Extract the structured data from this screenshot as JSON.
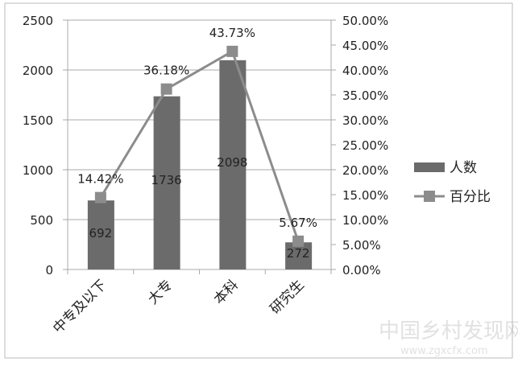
{
  "chart_data": {
    "type": "bar+line",
    "categories": [
      "中专及以下",
      "大专",
      "本科",
      "研究生"
    ],
    "series": [
      {
        "name": "人数",
        "type": "bar",
        "axis": "left",
        "values": [
          692,
          1736,
          2098,
          272
        ],
        "labels": [
          "692",
          "1736",
          "2098",
          "272"
        ],
        "color": "#6b6b6b"
      },
      {
        "name": "百分比",
        "type": "line",
        "axis": "right",
        "values": [
          14.42,
          36.18,
          43.73,
          5.67
        ],
        "labels": [
          "14.42%",
          "36.18%",
          "43.73%",
          "5.67%"
        ],
        "color": "#8c8c8c"
      }
    ],
    "y_left": {
      "range": [
        0,
        2500
      ],
      "ticks": [
        "0",
        "500",
        "1000",
        "1500",
        "2000",
        "2500"
      ]
    },
    "y_right": {
      "range": [
        0,
        50
      ],
      "ticks": [
        "0.00%",
        "5.00%",
        "10.00%",
        "15.00%",
        "20.00%",
        "25.00%",
        "30.00%",
        "35.00%",
        "40.00%",
        "45.00%",
        "50.00%"
      ]
    },
    "grid": true,
    "legend": "right"
  },
  "watermark": {
    "text": "中国乡村发现网",
    "url": "www.zgxcfx.com"
  }
}
